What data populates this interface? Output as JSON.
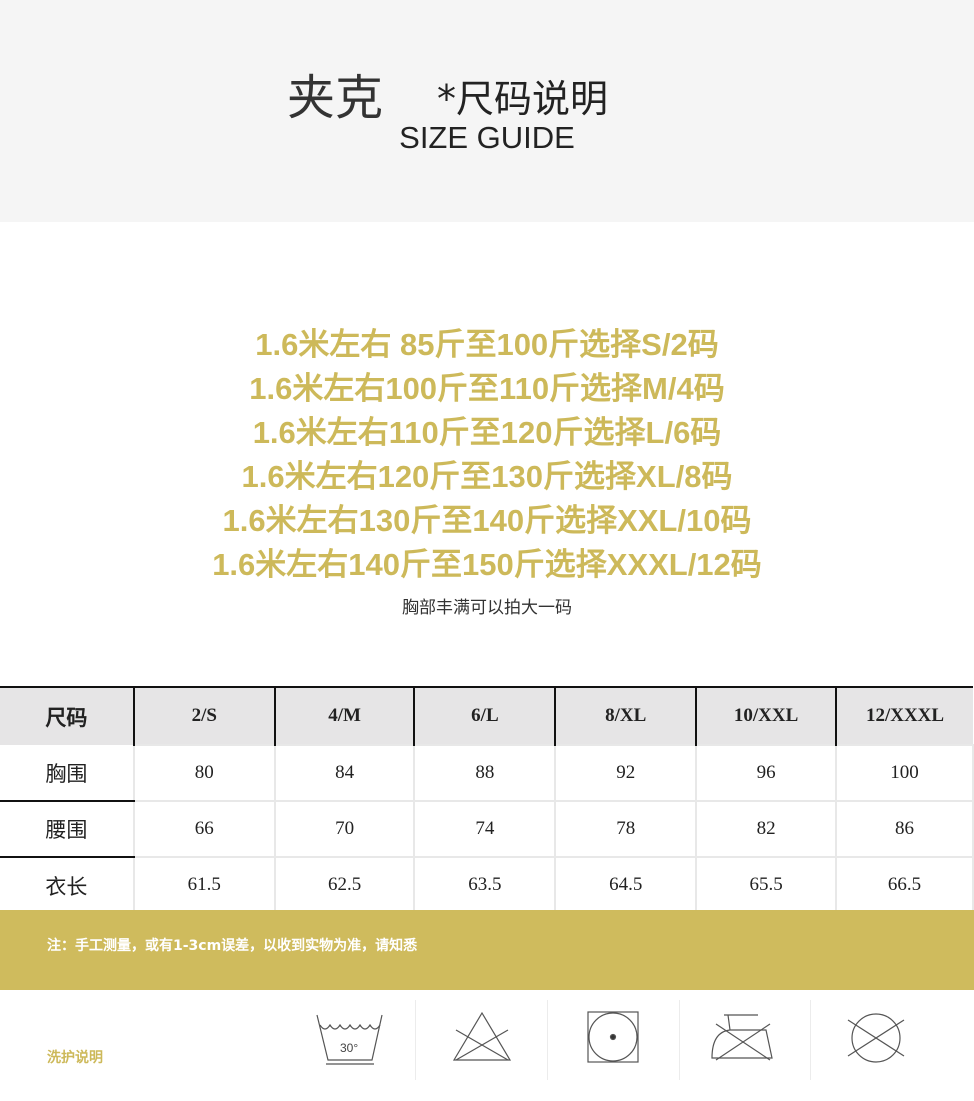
{
  "header": {
    "title": "夹克",
    "subtitle": "*尺码说明",
    "english": "SIZE GUIDE"
  },
  "recommendations": [
    "1.6米左右  85斤至100斤选择S/2码",
    "1.6米左右100斤至110斤选择M/4码",
    "1.6米左右110斤至120斤选择L/6码",
    "1.6米左右120斤至130斤选择XL/8码",
    "1.6米左右130斤至140斤选择XXL/10码",
    "1.6米左右140斤至150斤选择XXXL/12码"
  ],
  "note": "胸部丰满可以拍大一码",
  "table": {
    "header": [
      "尺码",
      "2/S",
      "4/M",
      "6/L",
      "8/XL",
      "10/XXL",
      "12/XXXL"
    ],
    "rows": [
      {
        "label": "胸围",
        "values": [
          "80",
          "84",
          "88",
          "92",
          "96",
          "100"
        ]
      },
      {
        "label": "腰围",
        "values": [
          "66",
          "70",
          "74",
          "78",
          "82",
          "86"
        ]
      },
      {
        "label": "衣长",
        "values": [
          "61.5",
          "62.5",
          "63.5",
          "64.5",
          "65.5",
          "66.5"
        ]
      }
    ]
  },
  "disclaimer": "注：手工测量，或有1-3cm误差，以收到实物为准，请知悉",
  "care": {
    "label": "洗护说明",
    "wash_temp": "30°",
    "icons": [
      "wash-30-icon",
      "no-bleach-icon",
      "tumble-dry-icon",
      "no-iron-icon",
      "no-dry-clean-icon"
    ]
  },
  "colors": {
    "accent": "#cfbb5d",
    "header_bg": "#f5f5f5"
  }
}
